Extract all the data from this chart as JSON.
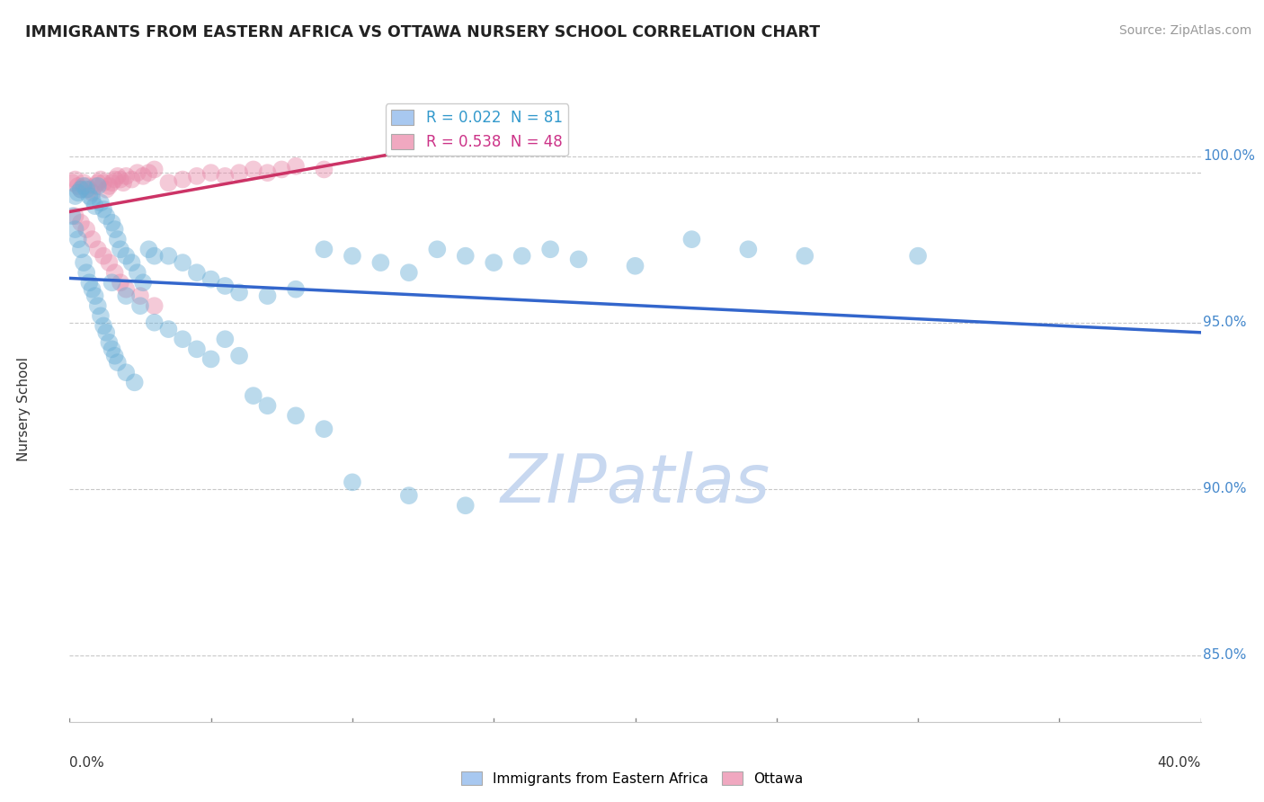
{
  "title": "IMMIGRANTS FROM EASTERN AFRICA VS OTTAWA NURSERY SCHOOL CORRELATION CHART",
  "source": "Source: ZipAtlas.com",
  "ylabel": "Nursery School",
  "x_min": 0.0,
  "x_max": 40.0,
  "y_min": 83.0,
  "y_max": 101.8,
  "y_ticks": [
    85.0,
    90.0,
    95.0,
    100.0
  ],
  "y_tick_labels": [
    "85.0%",
    "90.0%",
    "95.0%",
    "100.0%"
  ],
  "top_gridline": 99.5,
  "legend_blue_label": "R = 0.022  N = 81",
  "legend_pink_label": "R = 0.538  N = 48",
  "legend_blue_color": "#a8c8f0",
  "legend_pink_color": "#f0a8c0",
  "blue_color": "#6aaed6",
  "pink_color": "#e88aaa",
  "trendline_blue_color": "#3366cc",
  "trendline_pink_color": "#cc3366",
  "watermark_color": "#c8d8f0",
  "blue_scatter": [
    [
      0.2,
      98.8
    ],
    [
      0.3,
      98.9
    ],
    [
      0.4,
      99.0
    ],
    [
      0.5,
      99.1
    ],
    [
      0.6,
      99.0
    ],
    [
      0.7,
      98.8
    ],
    [
      0.8,
      98.7
    ],
    [
      0.9,
      98.5
    ],
    [
      1.0,
      99.1
    ],
    [
      1.1,
      98.6
    ],
    [
      1.2,
      98.4
    ],
    [
      1.3,
      98.2
    ],
    [
      1.5,
      98.0
    ],
    [
      1.6,
      97.8
    ],
    [
      1.7,
      97.5
    ],
    [
      1.8,
      97.2
    ],
    [
      2.0,
      97.0
    ],
    [
      2.2,
      96.8
    ],
    [
      2.4,
      96.5
    ],
    [
      2.6,
      96.2
    ],
    [
      0.1,
      98.2
    ],
    [
      0.2,
      97.8
    ],
    [
      0.3,
      97.5
    ],
    [
      0.4,
      97.2
    ],
    [
      0.5,
      96.8
    ],
    [
      0.6,
      96.5
    ],
    [
      0.7,
      96.2
    ],
    [
      0.8,
      96.0
    ],
    [
      0.9,
      95.8
    ],
    [
      1.0,
      95.5
    ],
    [
      1.1,
      95.2
    ],
    [
      1.2,
      94.9
    ],
    [
      1.3,
      94.7
    ],
    [
      1.4,
      94.4
    ],
    [
      1.5,
      94.2
    ],
    [
      1.6,
      94.0
    ],
    [
      1.7,
      93.8
    ],
    [
      2.0,
      93.5
    ],
    [
      2.3,
      93.2
    ],
    [
      2.8,
      97.2
    ],
    [
      3.0,
      97.0
    ],
    [
      3.5,
      97.0
    ],
    [
      4.0,
      96.8
    ],
    [
      4.5,
      96.5
    ],
    [
      5.0,
      96.3
    ],
    [
      5.5,
      96.1
    ],
    [
      6.0,
      95.9
    ],
    [
      7.0,
      95.8
    ],
    [
      8.0,
      96.0
    ],
    [
      9.0,
      97.2
    ],
    [
      10.0,
      97.0
    ],
    [
      11.0,
      96.8
    ],
    [
      12.0,
      96.5
    ],
    [
      13.0,
      97.2
    ],
    [
      14.0,
      97.0
    ],
    [
      15.0,
      96.8
    ],
    [
      16.0,
      97.0
    ],
    [
      17.0,
      97.2
    ],
    [
      18.0,
      96.9
    ],
    [
      20.0,
      96.7
    ],
    [
      22.0,
      97.5
    ],
    [
      24.0,
      97.2
    ],
    [
      26.0,
      97.0
    ],
    [
      1.5,
      96.2
    ],
    [
      2.0,
      95.8
    ],
    [
      2.5,
      95.5
    ],
    [
      3.0,
      95.0
    ],
    [
      3.5,
      94.8
    ],
    [
      4.0,
      94.5
    ],
    [
      4.5,
      94.2
    ],
    [
      5.0,
      93.9
    ],
    [
      5.5,
      94.5
    ],
    [
      6.0,
      94.0
    ],
    [
      6.5,
      92.8
    ],
    [
      7.0,
      92.5
    ],
    [
      8.0,
      92.2
    ],
    [
      9.0,
      91.8
    ],
    [
      10.0,
      90.2
    ],
    [
      12.0,
      89.8
    ],
    [
      14.0,
      89.5
    ],
    [
      30.0,
      97.0
    ]
  ],
  "pink_scatter": [
    [
      0.1,
      99.2
    ],
    [
      0.2,
      99.3
    ],
    [
      0.3,
      99.1
    ],
    [
      0.4,
      99.0
    ],
    [
      0.5,
      99.2
    ],
    [
      0.6,
      99.1
    ],
    [
      0.7,
      99.0
    ],
    [
      0.8,
      98.9
    ],
    [
      0.9,
      99.1
    ],
    [
      1.0,
      99.2
    ],
    [
      1.1,
      99.3
    ],
    [
      1.2,
      99.2
    ],
    [
      1.3,
      99.0
    ],
    [
      1.4,
      99.1
    ],
    [
      1.5,
      99.2
    ],
    [
      1.6,
      99.3
    ],
    [
      1.7,
      99.4
    ],
    [
      1.8,
      99.3
    ],
    [
      1.9,
      99.2
    ],
    [
      2.0,
      99.4
    ],
    [
      2.2,
      99.3
    ],
    [
      2.4,
      99.5
    ],
    [
      2.6,
      99.4
    ],
    [
      2.8,
      99.5
    ],
    [
      3.0,
      99.6
    ],
    [
      0.2,
      98.2
    ],
    [
      0.4,
      98.0
    ],
    [
      0.6,
      97.8
    ],
    [
      0.8,
      97.5
    ],
    [
      1.0,
      97.2
    ],
    [
      1.2,
      97.0
    ],
    [
      1.4,
      96.8
    ],
    [
      1.6,
      96.5
    ],
    [
      1.8,
      96.2
    ],
    [
      2.0,
      96.0
    ],
    [
      2.5,
      95.8
    ],
    [
      3.0,
      95.5
    ],
    [
      3.5,
      99.2
    ],
    [
      4.0,
      99.3
    ],
    [
      4.5,
      99.4
    ],
    [
      5.0,
      99.5
    ],
    [
      5.5,
      99.4
    ],
    [
      6.0,
      99.5
    ],
    [
      6.5,
      99.6
    ],
    [
      7.0,
      99.5
    ],
    [
      7.5,
      99.6
    ],
    [
      8.0,
      99.7
    ],
    [
      9.0,
      99.6
    ]
  ]
}
